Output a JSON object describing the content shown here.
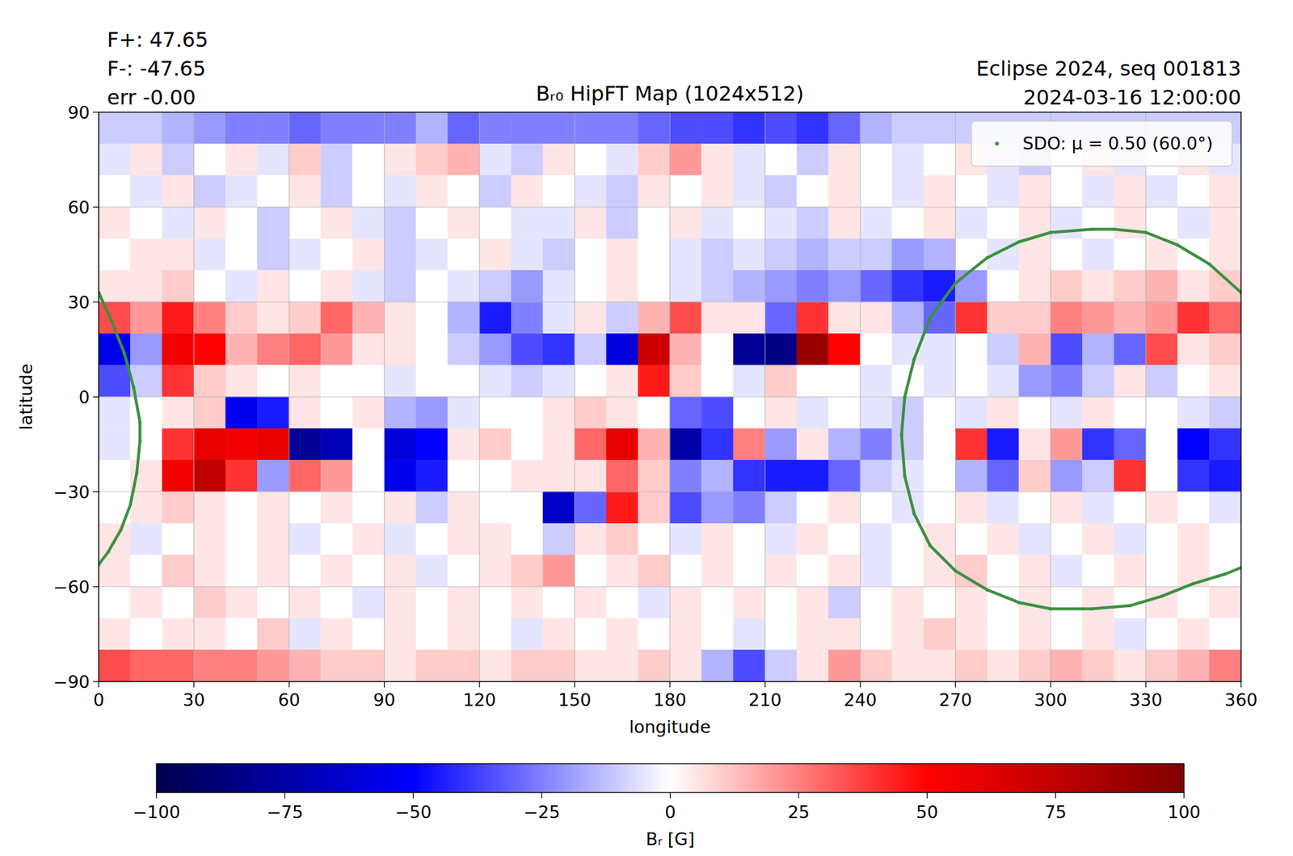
{
  "chart_data": {
    "type": "heatmap",
    "title": "Bᵣ₀ HipFT Map (1024x512)",
    "header_left": [
      "F+: 47.65",
      "F-: -47.65",
      "err -0.00"
    ],
    "header_right": [
      "Eclipse 2024, seq 001813",
      "2024-03-16 12:00:00"
    ],
    "x_label": "longitude",
    "y_label": "latitude",
    "xlim": [
      0,
      360
    ],
    "ylim": [
      -90,
      90
    ],
    "xticks": [
      0,
      30,
      60,
      90,
      120,
      150,
      180,
      210,
      240,
      270,
      300,
      330,
      360
    ],
    "yticks": [
      {
        "value": -90,
        "label": "−90"
      },
      {
        "value": -60,
        "label": "−60"
      },
      {
        "value": -30,
        "label": "−30"
      },
      0,
      30,
      60,
      90
    ],
    "grid": true,
    "legend": "upper right",
    "cells": [
      [
        -10,
        -10,
        -15,
        -20,
        -25,
        -25,
        -30,
        -25,
        -25,
        -25,
        -15,
        -30,
        -25,
        -25,
        -25,
        -25,
        -25,
        -30,
        -35,
        -35,
        -40,
        -35,
        -40,
        -30,
        -15,
        -10,
        -10,
        -10,
        -10,
        -10,
        -10,
        -10,
        -10,
        -10,
        -10,
        -10
      ],
      [
        -5,
        5,
        -10,
        0,
        5,
        -5,
        10,
        -10,
        0,
        5,
        10,
        15,
        -5,
        -10,
        5,
        0,
        -5,
        10,
        20,
        5,
        -5,
        0,
        -10,
        5,
        0,
        -5,
        0,
        5,
        -5,
        -10,
        0,
        5,
        -5,
        0,
        5,
        -5
      ],
      [
        0,
        -5,
        5,
        -10,
        -5,
        0,
        5,
        -10,
        0,
        -5,
        5,
        0,
        -10,
        5,
        0,
        -5,
        -10,
        5,
        0,
        5,
        -5,
        -10,
        0,
        5,
        0,
        -5,
        5,
        0,
        -5,
        5,
        0,
        -5,
        5,
        -5,
        0,
        5
      ],
      [
        5,
        0,
        -5,
        5,
        0,
        -10,
        0,
        5,
        -5,
        -10,
        0,
        5,
        0,
        -5,
        -5,
        5,
        -10,
        0,
        5,
        -5,
        0,
        -5,
        -10,
        5,
        -5,
        0,
        5,
        -5,
        0,
        5,
        -5,
        0,
        5,
        0,
        -5,
        5
      ],
      [
        0,
        5,
        5,
        -5,
        0,
        -10,
        -5,
        0,
        5,
        -10,
        -5,
        0,
        5,
        -5,
        -10,
        0,
        5,
        0,
        -5,
        -10,
        -5,
        -10,
        -15,
        -10,
        -10,
        -20,
        -15,
        0,
        -5,
        5,
        0,
        -5,
        0,
        5,
        0,
        5
      ],
      [
        5,
        5,
        10,
        0,
        -5,
        5,
        0,
        5,
        -5,
        -10,
        0,
        -5,
        -10,
        -20,
        -5,
        0,
        5,
        0,
        -5,
        -10,
        -15,
        -20,
        -25,
        -20,
        -30,
        -40,
        -45,
        -20,
        0,
        5,
        10,
        5,
        10,
        15,
        5,
        10
      ],
      [
        35,
        20,
        45,
        25,
        10,
        5,
        10,
        30,
        15,
        5,
        0,
        -15,
        -45,
        -25,
        -5,
        5,
        -10,
        15,
        35,
        5,
        5,
        -30,
        40,
        5,
        5,
        -15,
        -30,
        40,
        10,
        10,
        25,
        20,
        15,
        20,
        40,
        30
      ],
      [
        -55,
        -20,
        55,
        50,
        15,
        25,
        30,
        20,
        5,
        5,
        0,
        -10,
        -20,
        -35,
        -40,
        -10,
        -60,
        70,
        15,
        0,
        -80,
        -85,
        90,
        50,
        0,
        -5,
        -5,
        0,
        -10,
        15,
        -35,
        -15,
        -30,
        35,
        5,
        10
      ],
      [
        -35,
        -10,
        40,
        10,
        5,
        0,
        5,
        0,
        0,
        -5,
        0,
        0,
        -5,
        -10,
        -5,
        0,
        5,
        45,
        10,
        0,
        -5,
        10,
        0,
        0,
        -5,
        0,
        -5,
        0,
        -5,
        -20,
        -25,
        -10,
        5,
        -10,
        0,
        5
      ],
      [
        -5,
        0,
        5,
        10,
        -55,
        -45,
        5,
        0,
        5,
        -15,
        -20,
        -5,
        0,
        0,
        5,
        10,
        5,
        0,
        -30,
        -35,
        0,
        5,
        -5,
        0,
        -5,
        -10,
        0,
        -5,
        5,
        0,
        -5,
        5,
        0,
        0,
        -5,
        -10
      ],
      [
        -5,
        0,
        40,
        60,
        55,
        60,
        -80,
        -70,
        0,
        -60,
        -50,
        5,
        10,
        0,
        5,
        30,
        60,
        15,
        -75,
        -40,
        25,
        -20,
        5,
        -15,
        -25,
        -10,
        0,
        40,
        -45,
        5,
        20,
        -40,
        -30,
        0,
        -50,
        -40
      ],
      [
        0,
        5,
        55,
        75,
        40,
        -20,
        30,
        20,
        0,
        -55,
        -45,
        0,
        0,
        5,
        5,
        5,
        30,
        10,
        -25,
        -15,
        -40,
        -45,
        -45,
        -30,
        -10,
        -5,
        0,
        -15,
        -30,
        10,
        -20,
        -10,
        40,
        0,
        -40,
        -45
      ],
      [
        0,
        5,
        10,
        5,
        0,
        5,
        0,
        5,
        0,
        5,
        -10,
        5,
        0,
        0,
        -65,
        -30,
        45,
        10,
        -35,
        -20,
        -25,
        -10,
        0,
        5,
        0,
        -5,
        0,
        5,
        -5,
        0,
        5,
        -5,
        0,
        5,
        0,
        -5
      ],
      [
        5,
        -5,
        0,
        5,
        0,
        5,
        -5,
        0,
        5,
        -5,
        0,
        5,
        5,
        0,
        -10,
        5,
        10,
        0,
        -5,
        5,
        0,
        -5,
        5,
        0,
        -5,
        0,
        5,
        0,
        5,
        -5,
        0,
        5,
        -5,
        0,
        5,
        0
      ],
      [
        5,
        0,
        10,
        5,
        0,
        5,
        0,
        5,
        0,
        5,
        -5,
        0,
        5,
        10,
        20,
        0,
        5,
        10,
        0,
        5,
        0,
        5,
        0,
        5,
        -5,
        0,
        5,
        10,
        0,
        5,
        -5,
        0,
        5,
        0,
        5,
        0
      ],
      [
        0,
        5,
        0,
        10,
        5,
        0,
        5,
        0,
        -5,
        5,
        0,
        5,
        0,
        5,
        0,
        5,
        0,
        -5,
        5,
        0,
        5,
        0,
        5,
        -10,
        0,
        5,
        0,
        5,
        0,
        5,
        0,
        5,
        0,
        5,
        0,
        5
      ],
      [
        5,
        0,
        5,
        5,
        0,
        10,
        -5,
        5,
        0,
        5,
        0,
        5,
        0,
        -5,
        5,
        0,
        5,
        0,
        5,
        0,
        -5,
        0,
        5,
        5,
        0,
        5,
        10,
        5,
        0,
        5,
        0,
        5,
        -5,
        0,
        5,
        0
      ],
      [
        35,
        30,
        30,
        25,
        25,
        20,
        15,
        10,
        10,
        5,
        10,
        10,
        5,
        10,
        10,
        5,
        5,
        10,
        5,
        -15,
        -35,
        -10,
        5,
        20,
        10,
        5,
        5,
        10,
        5,
        10,
        15,
        10,
        5,
        10,
        15,
        25
      ]
    ],
    "colorbar_range": [
      -100,
      100
    ],
    "colorbar_ticks": [
      {
        "value": -100,
        "label": "−100"
      },
      {
        "value": -75,
        "label": "−75"
      },
      {
        "value": -50,
        "label": "−50"
      },
      {
        "value": -25,
        "label": "−25"
      },
      0,
      25,
      50,
      75,
      100
    ],
    "colorbar_label": "Bᵣ [G]",
    "series": [
      {
        "name": "SDO: μ = 0.50 (60.0°)",
        "color": "#3c9040",
        "type": "line",
        "marker": "point",
        "x": [
          0,
          4,
          8,
          11,
          13,
          13,
          12,
          10,
          7,
          3,
          0,
          null,
          360,
          350,
          340,
          330,
          320,
          313,
          300,
          290,
          280,
          270,
          262,
          257,
          254,
          253,
          254,
          257,
          262,
          270,
          280,
          290,
          300,
          313,
          325,
          335,
          345,
          355,
          360
        ],
        "values": [
          33,
          24,
          14,
          3,
          -8,
          -14,
          -24,
          -34,
          -42,
          -49,
          -53,
          null,
          33,
          42,
          48,
          52,
          53,
          53,
          52,
          49,
          44,
          36,
          25,
          12,
          0,
          -12,
          -25,
          -37,
          -47,
          -55,
          -61,
          -65,
          -67,
          -67,
          -66,
          -63,
          -59,
          -56,
          -54
        ]
      }
    ]
  }
}
